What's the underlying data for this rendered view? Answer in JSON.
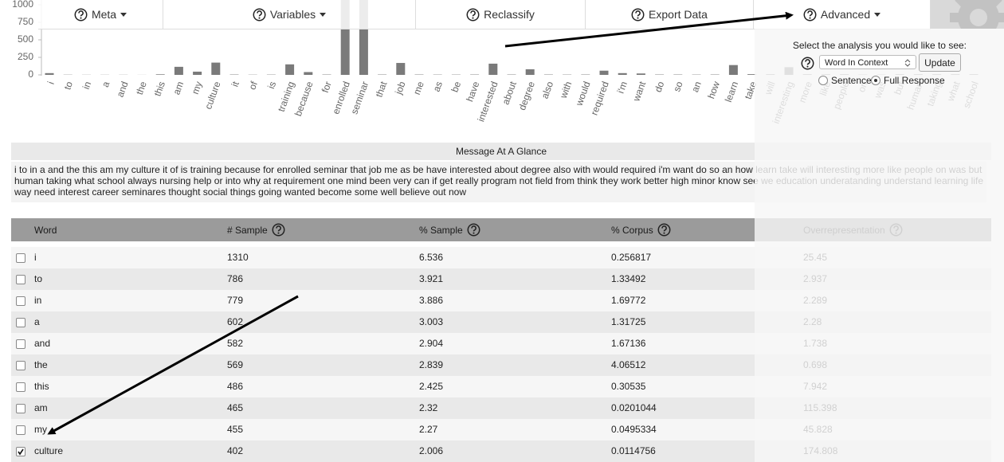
{
  "nav": [
    {
      "label": "Meta",
      "dropdown": true
    },
    {
      "label": "Variables",
      "dropdown": true
    },
    {
      "label": "Reclassify",
      "dropdown": false
    },
    {
      "label": "Export Data",
      "dropdown": false
    },
    {
      "label": "Advanced",
      "dropdown": true
    }
  ],
  "chart_data": {
    "type": "bar",
    "color": "#7a7a7a",
    "ylim": [
      0,
      1000
    ],
    "yticks": [
      0,
      250,
      500,
      750,
      1000
    ],
    "categories": [
      "i",
      "to",
      "in",
      "a",
      "and",
      "the",
      "this",
      "am",
      "my",
      "culture",
      "it",
      "of",
      "is",
      "training",
      "because",
      "for",
      "enrolled",
      "seminar",
      "that",
      "job",
      "me",
      "as",
      "be",
      "have",
      "interested",
      "about",
      "degree",
      "also",
      "with",
      "would",
      "required",
      "i'm",
      "want",
      "do",
      "so",
      "an",
      "how",
      "learn",
      "take",
      "will",
      "interesting",
      "more",
      "like",
      "people",
      "on",
      "was",
      "but",
      "human",
      "taking",
      "what",
      "school"
    ],
    "values": [
      25,
      3,
      2,
      2,
      2,
      1,
      8,
      115,
      46,
      175,
      5,
      3,
      4,
      150,
      40,
      5,
      1100,
      1100,
      5,
      170,
      5,
      4,
      4,
      5,
      160,
      5,
      80,
      5,
      4,
      5,
      60,
      25,
      20,
      5,
      5,
      4,
      5,
      140,
      10,
      10,
      110,
      10,
      10,
      10,
      5,
      5,
      10,
      10,
      10,
      10,
      10
    ]
  },
  "message": {
    "title": "Message At A Glance",
    "text": "i to in a and the this am my culture it of is training because for enrolled seminar that job me as be have interested about degree also with would required i'm want do so an how learn take will interesting more like people on was but human taking what school always nursing help or into why at requirement one mind been very can if get really program not field from think they work better high minor know see we education underatanding understand learning life way need interest career seminares thought social things going wanted become some well believe out now"
  },
  "table": {
    "columns": [
      {
        "label": "Word",
        "help": false
      },
      {
        "label": "# Sample",
        "help": true
      },
      {
        "label": "% Sample",
        "help": true
      },
      {
        "label": "% Corpus",
        "help": true
      },
      {
        "label": "Overrepresentation",
        "help": true
      }
    ],
    "rows": [
      {
        "checked": false,
        "cells": [
          "i",
          "1310",
          "6.536",
          "0.256817",
          "25.45"
        ]
      },
      {
        "checked": false,
        "cells": [
          "to",
          "786",
          "3.921",
          "1.33492",
          "2.937"
        ]
      },
      {
        "checked": false,
        "cells": [
          "in",
          "779",
          "3.886",
          "1.69772",
          "2.289"
        ]
      },
      {
        "checked": false,
        "cells": [
          "a",
          "602",
          "3.003",
          "1.31725",
          "2.28"
        ]
      },
      {
        "checked": false,
        "cells": [
          "and",
          "582",
          "2.904",
          "1.67136",
          "1.738"
        ]
      },
      {
        "checked": false,
        "cells": [
          "the",
          "569",
          "2.839",
          "4.06512",
          "0.698"
        ]
      },
      {
        "checked": false,
        "cells": [
          "this",
          "486",
          "2.425",
          "0.30535",
          "7.942"
        ]
      },
      {
        "checked": false,
        "cells": [
          "am",
          "465",
          "2.32",
          "0.0201044",
          "115.398"
        ]
      },
      {
        "checked": false,
        "cells": [
          "my",
          "455",
          "2.27",
          "0.0495334",
          "45.828"
        ]
      },
      {
        "checked": true,
        "cells": [
          "culture",
          "402",
          "2.006",
          "0.0114756",
          "174.808"
        ]
      }
    ]
  },
  "overlay": {
    "prompt": "Select the analysis you would like to see:",
    "select": "Word In Context",
    "button": "Update",
    "options": [
      {
        "label": "Sentence",
        "selected": false
      },
      {
        "label": "Full Response",
        "selected": true
      }
    ]
  }
}
